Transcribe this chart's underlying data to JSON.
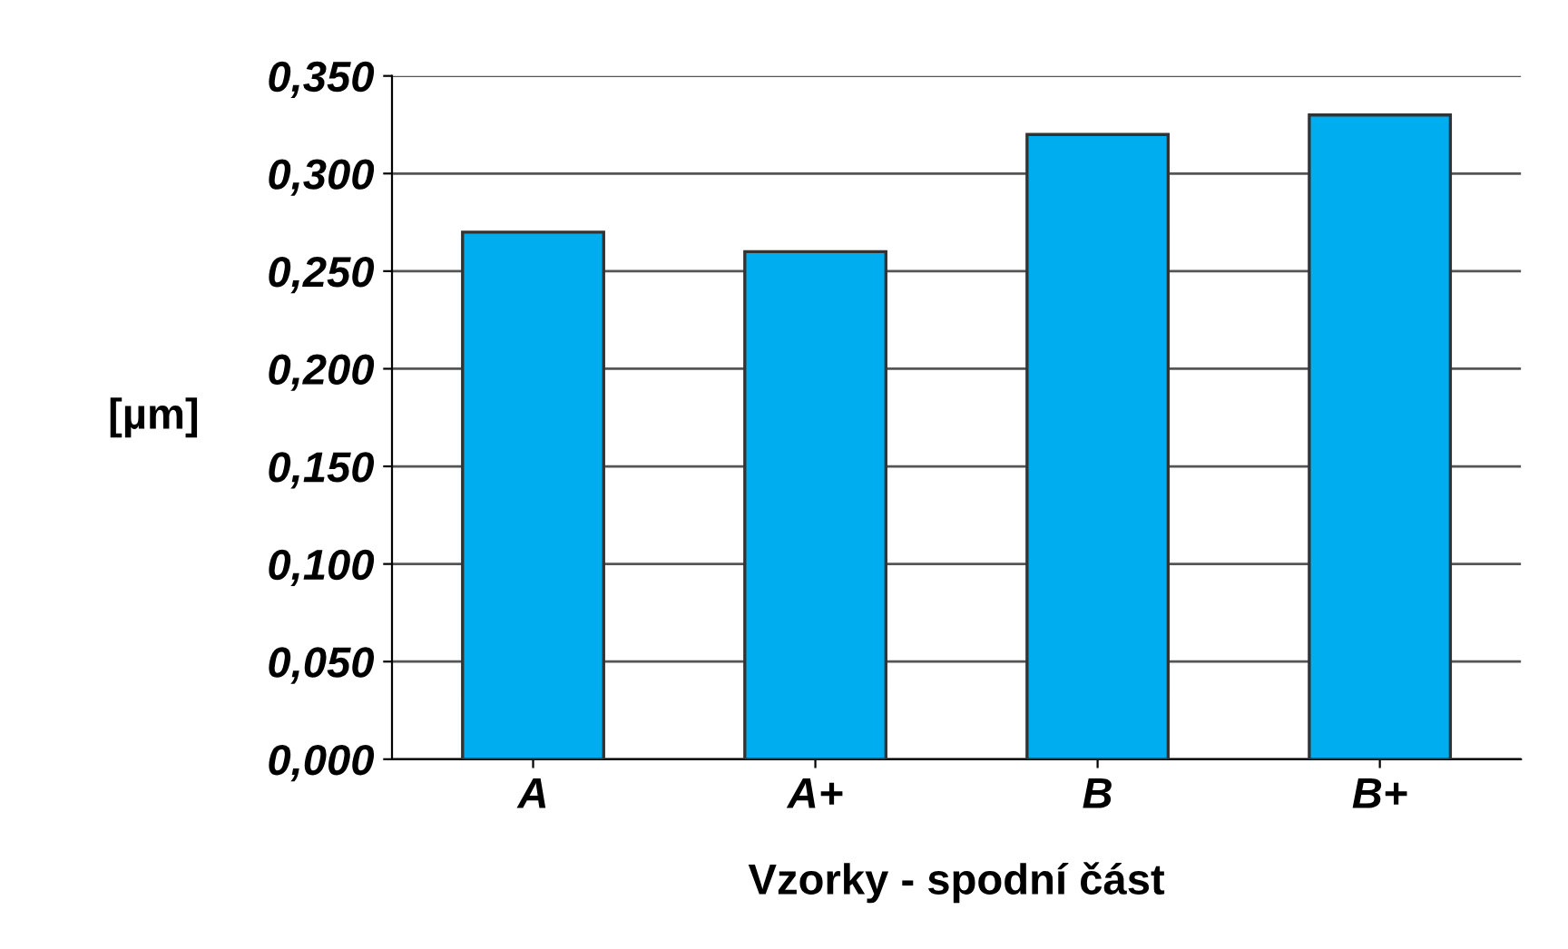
{
  "chart_data": {
    "type": "bar",
    "xlabel": "Vzorky - spodní část",
    "ylabel": "[µm]",
    "categories": [
      "A",
      "A+",
      "B",
      "B+"
    ],
    "values": [
      0.27,
      0.26,
      0.32,
      0.33
    ],
    "color": "#00aeef",
    "ylim": [
      0,
      0.35
    ],
    "yticks": [
      {
        "value": 0,
        "label": "0,000"
      },
      {
        "value": 0.05,
        "label": "0,050"
      },
      {
        "value": 0.1,
        "label": "0,100"
      },
      {
        "value": 0.15,
        "label": "0,150"
      },
      {
        "value": 0.2,
        "label": "0,200"
      },
      {
        "value": 0.25,
        "label": "0,250"
      },
      {
        "value": 0.3,
        "label": "0,300"
      },
      {
        "value": 0.35,
        "label": "0,350"
      }
    ],
    "grid": "y",
    "legend": false
  }
}
